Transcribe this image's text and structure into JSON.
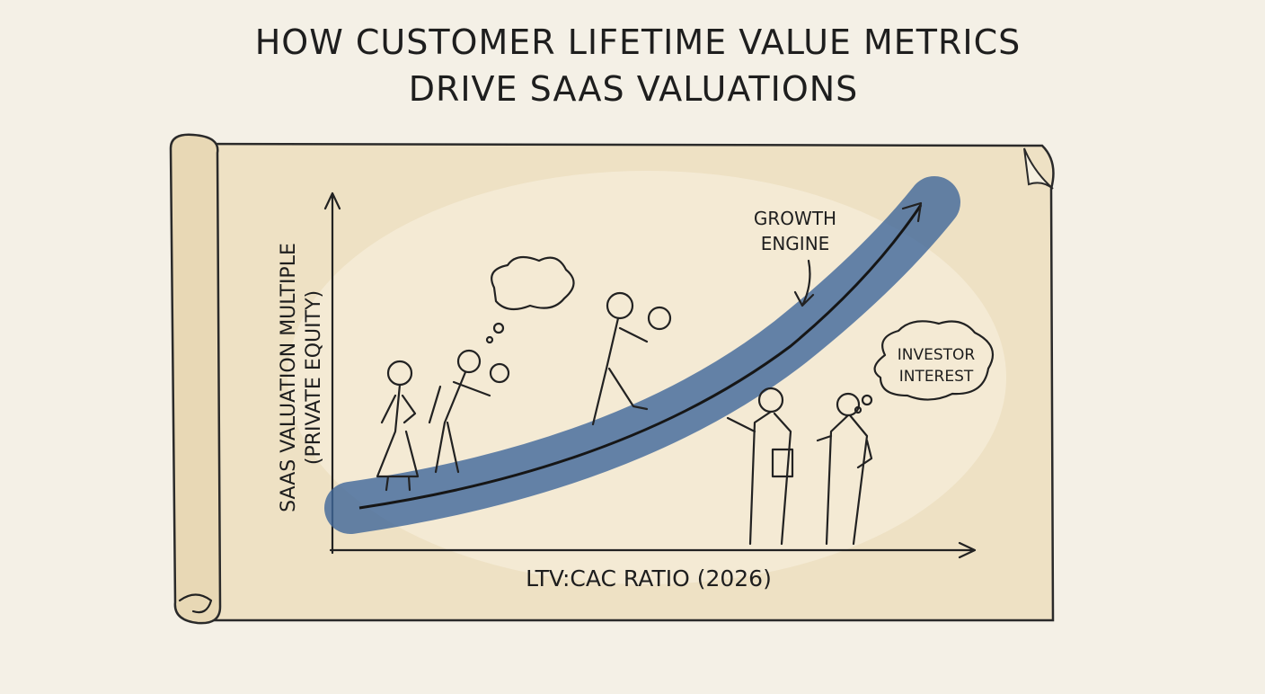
{
  "title": {
    "lines": [
      "HOW CUSTOMER LIFETIME VALUE METRICS",
      "DRIVE SAAS VALUATIONS"
    ]
  },
  "y_axis": {
    "lines": [
      "SAAS VALUATION MULTIPLE",
      "(PRIVATE EQUITY)"
    ]
  },
  "x_axis": {
    "label": "LTV:CAC RATIO (2026)"
  },
  "annotations": [
    {
      "lines": [
        "GROWTH",
        "ENGINE"
      ]
    },
    {
      "lines": [
        "INVESTOR",
        "INTEREST"
      ]
    }
  ]
}
